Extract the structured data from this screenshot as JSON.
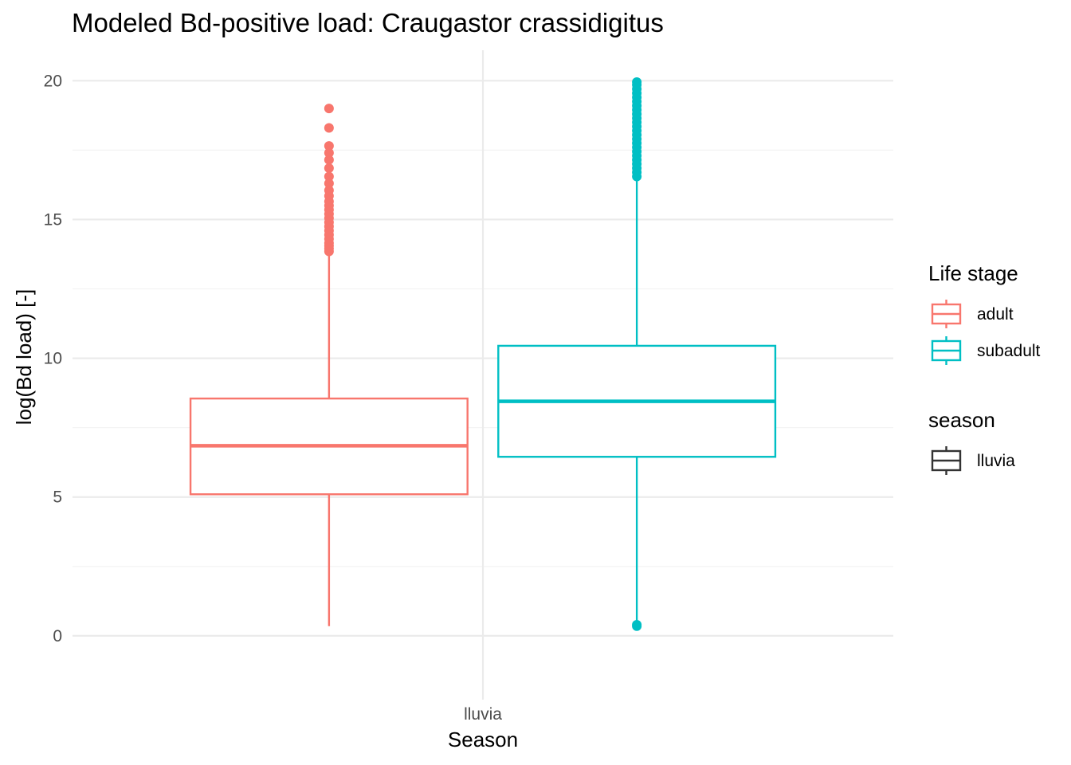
{
  "chart_data": {
    "type": "box",
    "title": "Modeled Bd-positive load: Craugastor crassidigitus",
    "xlabel": "Season",
    "ylabel": "log(Bd load) [-]",
    "categories": [
      "lluvia"
    ],
    "ylim": [
      -2.3,
      21.1
    ],
    "yticks": [
      0,
      5,
      10,
      15,
      20
    ],
    "ytick_labels": [
      "0",
      "5",
      "10",
      "15",
      "20"
    ],
    "grid": true,
    "legend_position": "right",
    "series": [
      {
        "name": "adult",
        "color": "#F8766D",
        "category": "lluvia",
        "whisker_low": 0.35,
        "q1": 5.1,
        "median": 6.85,
        "q3": 8.55,
        "whisker_high": 13.8,
        "outliers": [
          13.85,
          13.95,
          14.05,
          14.15,
          14.3,
          14.45,
          14.6,
          14.75,
          14.9,
          15.05,
          15.2,
          15.35,
          15.5,
          15.65,
          15.85,
          16.05,
          16.3,
          16.55,
          16.85,
          17.15,
          17.4,
          17.65,
          18.3,
          19.0
        ]
      },
      {
        "name": "subadult",
        "color": "#00BFC4",
        "category": "lluvia",
        "whisker_low": 0.5,
        "q1": 6.45,
        "median": 8.45,
        "q3": 10.45,
        "whisker_high": 16.5,
        "outliers": [
          0.35,
          0.4,
          16.55,
          16.7,
          16.85,
          17.0,
          17.15,
          17.3,
          17.45,
          17.6,
          17.75,
          17.9,
          18.05,
          18.2,
          18.35,
          18.5,
          18.65,
          18.8,
          18.95,
          19.1,
          19.25,
          19.4,
          19.55,
          19.7,
          19.85,
          19.95
        ]
      }
    ],
    "legends": [
      {
        "title": "Life stage",
        "items": [
          {
            "label": "adult",
            "color": "#F8766D"
          },
          {
            "label": "subadult",
            "color": "#00BFC4"
          }
        ]
      },
      {
        "title": "season",
        "items": [
          {
            "label": "lluvia",
            "color": "#333333"
          }
        ]
      }
    ]
  }
}
